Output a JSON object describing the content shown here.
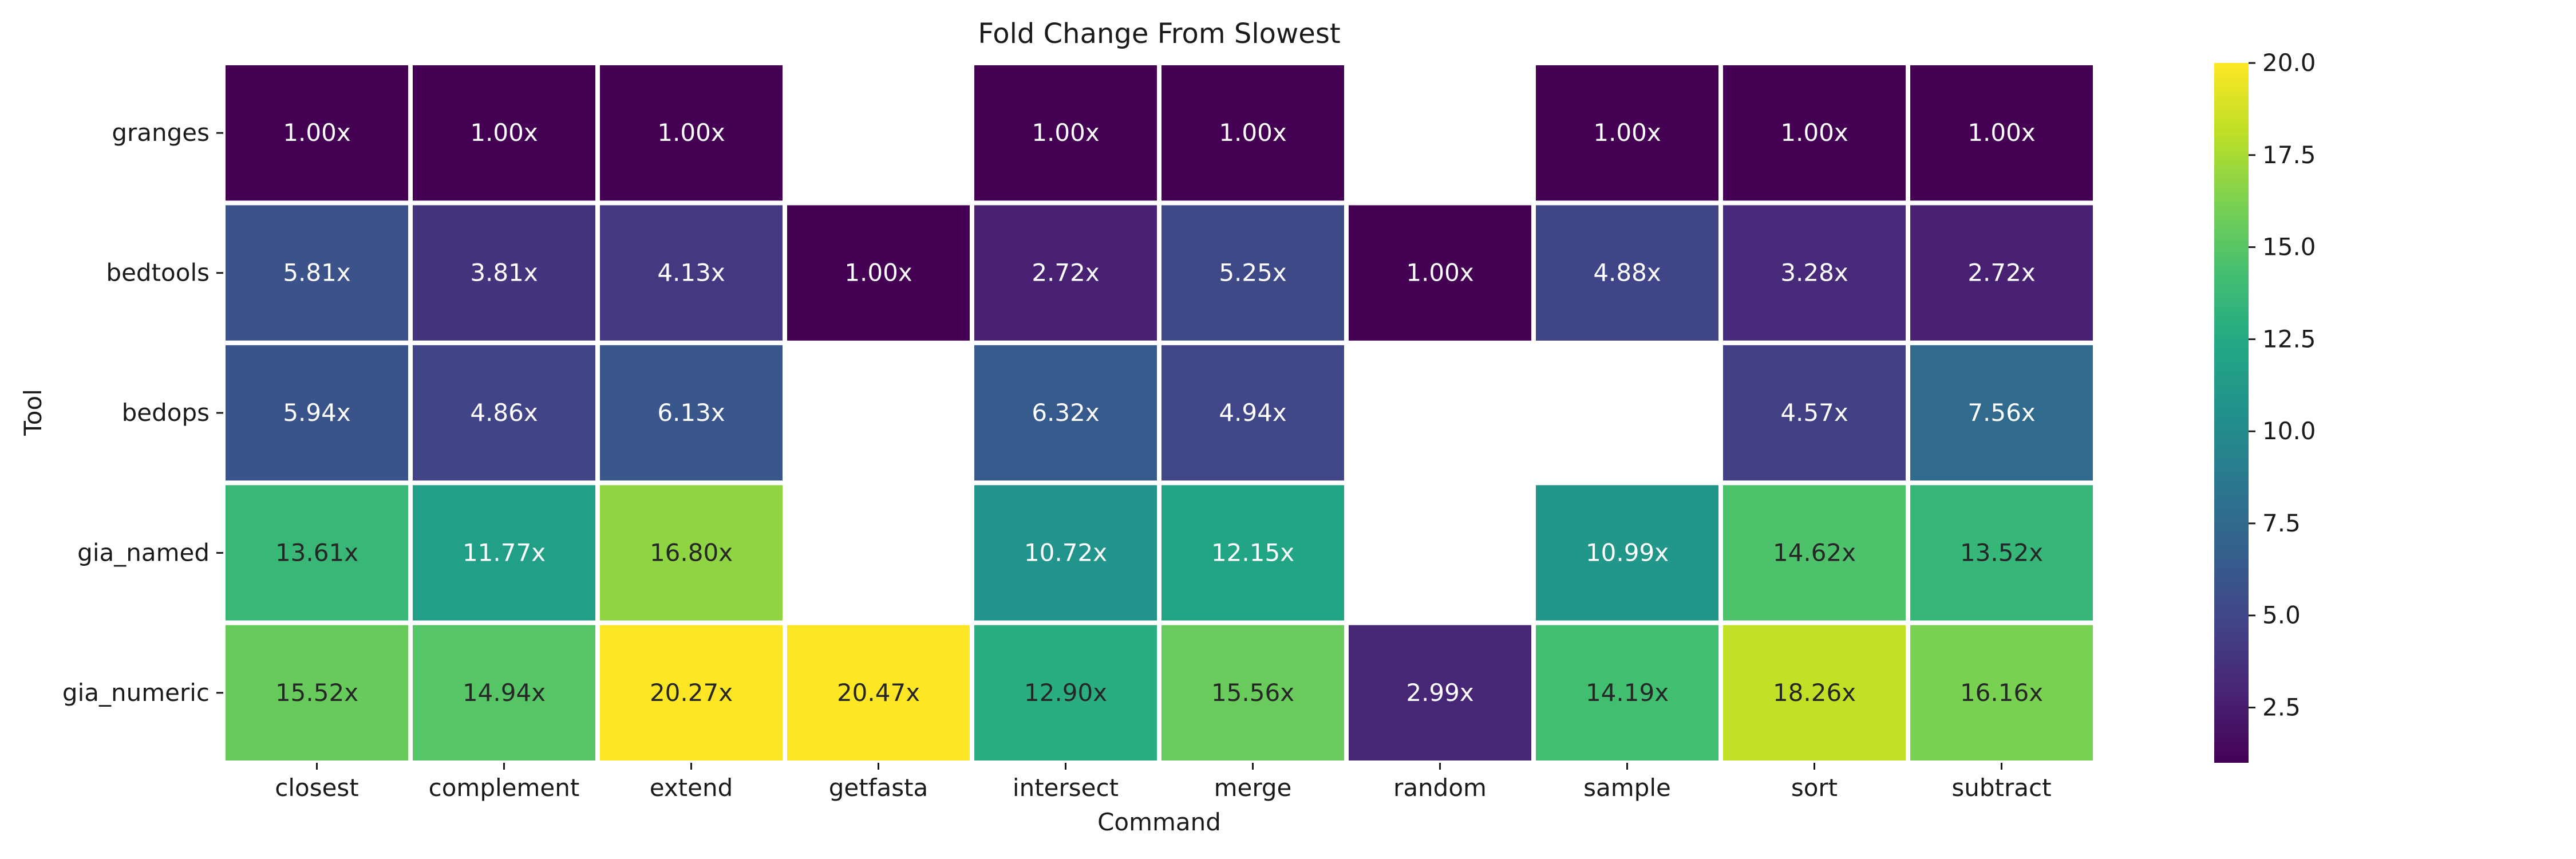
{
  "chart_data": {
    "type": "heatmap",
    "title": "Fold Change From Slowest",
    "xlabel": "Command",
    "ylabel": "Tool",
    "categories": [
      "closest",
      "complement",
      "extend",
      "getfasta",
      "intersect",
      "merge",
      "random",
      "sample",
      "sort",
      "subtract"
    ],
    "rows": [
      "granges",
      "bedtools",
      "bedops",
      "gia_named",
      "gia_numeric"
    ],
    "values": [
      [
        1.0,
        1.0,
        1.0,
        null,
        1.0,
        1.0,
        null,
        1.0,
        1.0,
        1.0
      ],
      [
        5.81,
        3.81,
        4.13,
        1.0,
        2.72,
        5.25,
        1.0,
        4.88,
        3.28,
        2.72
      ],
      [
        5.94,
        4.86,
        6.13,
        null,
        6.32,
        4.94,
        null,
        null,
        4.57,
        7.56
      ],
      [
        13.61,
        11.77,
        16.8,
        null,
        10.72,
        12.15,
        null,
        10.99,
        14.62,
        13.52
      ],
      [
        15.52,
        14.94,
        20.27,
        20.47,
        12.9,
        15.56,
        2.99,
        14.19,
        18.26,
        16.16
      ]
    ],
    "labels": [
      [
        "1.00x",
        "1.00x",
        "1.00x",
        "",
        "1.00x",
        "1.00x",
        "",
        "1.00x",
        "1.00x",
        "1.00x"
      ],
      [
        "5.81x",
        "3.81x",
        "4.13x",
        "1.00x",
        "2.72x",
        "5.25x",
        "1.00x",
        "4.88x",
        "3.28x",
        "2.72x"
      ],
      [
        "5.94x",
        "4.86x",
        "6.13x",
        "",
        "6.32x",
        "4.94x",
        "",
        "",
        "4.57x",
        "7.56x"
      ],
      [
        "13.61x",
        "11.77x",
        "16.80x",
        "",
        "10.72x",
        "12.15x",
        "",
        "10.99x",
        "14.62x",
        "13.52x"
      ],
      [
        "15.52x",
        "14.94x",
        "20.27x",
        "20.47x",
        "12.90x",
        "15.56x",
        "2.99x",
        "14.19x",
        "18.26x",
        "16.16x"
      ]
    ],
    "colormap": "viridis",
    "vmin": 1.0,
    "vmax": 20.0,
    "colorbar_ticks": [
      2.5,
      5.0,
      7.5,
      10.0,
      12.5,
      15.0,
      17.5,
      20.0
    ],
    "colorbar_tick_labels": [
      "2.5",
      "5.0",
      "7.5",
      "10.0",
      "12.5",
      "15.0",
      "17.5",
      "20.0"
    ],
    "grid": false,
    "cell_separator_color": "#ffffff"
  }
}
